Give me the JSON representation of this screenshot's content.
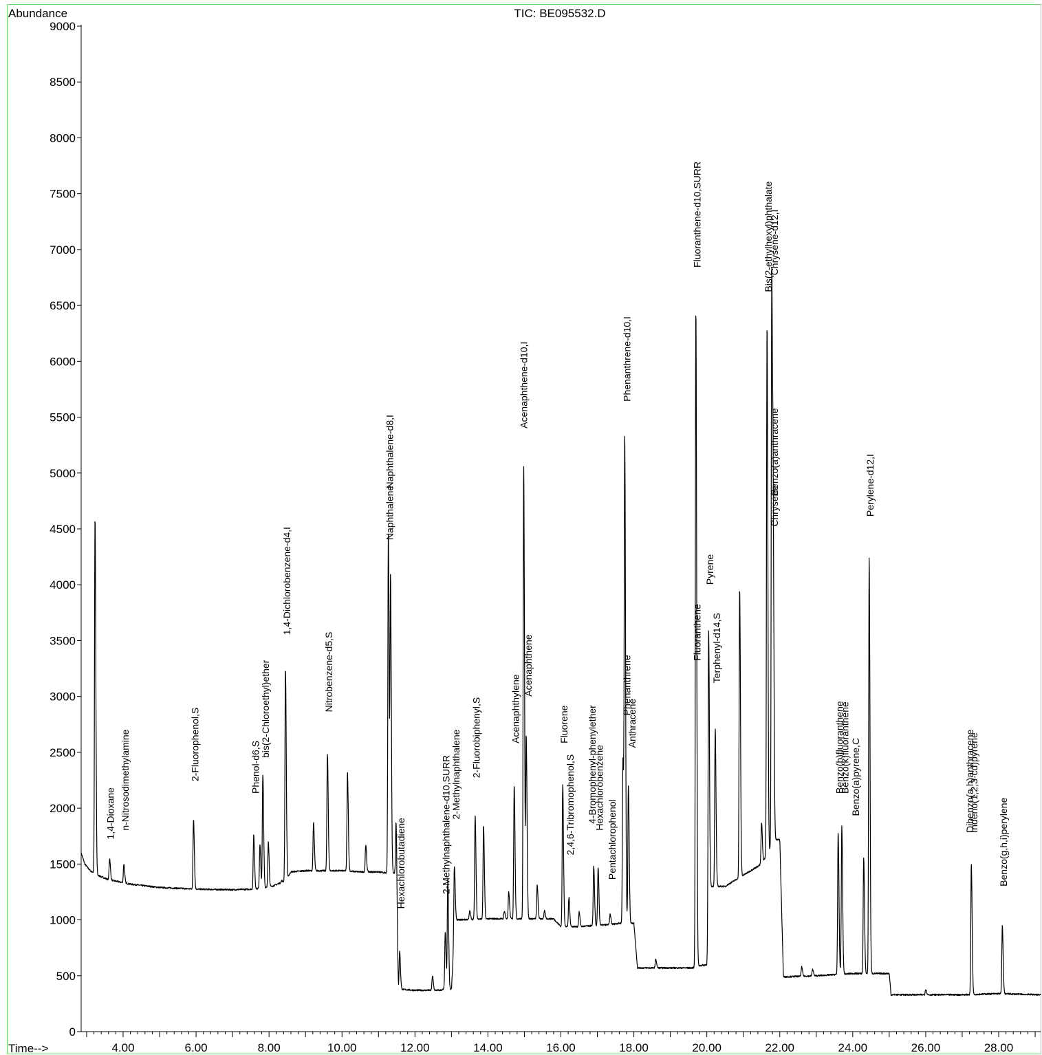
{
  "chart_data": {
    "type": "line",
    "title": "TIC: BE095532.D",
    "ylabel": "Abundance",
    "xlabel": "Time-->",
    "xlim": [
      2.85,
      29.15
    ],
    "ylim": [
      0,
      9000
    ],
    "x_ticks": [
      "4.00",
      "6.00",
      "8.00",
      "10.00",
      "12.00",
      "14.00",
      "16.00",
      "18.00",
      "20.00",
      "22.00",
      "24.00",
      "26.00",
      "28.00"
    ],
    "y_ticks": [
      "0",
      "500",
      "1000",
      "1500",
      "2000",
      "2500",
      "3000",
      "3500",
      "4000",
      "4500",
      "5000",
      "5500",
      "6000",
      "6500",
      "7000",
      "7500",
      "8000",
      "8500",
      "9000"
    ],
    "colors": {
      "frame": "#66dd66",
      "trace": "#000000"
    },
    "baseline": [
      [
        2.85,
        1600
      ],
      [
        2.95,
        1500
      ],
      [
        3.1,
        1440
      ],
      [
        3.3,
        1400
      ],
      [
        3.6,
        1360
      ],
      [
        4.2,
        1320
      ],
      [
        5.0,
        1290
      ],
      [
        6.0,
        1275
      ],
      [
        7.0,
        1270
      ],
      [
        7.5,
        1275
      ],
      [
        8.0,
        1290
      ],
      [
        8.45,
        1350
      ],
      [
        8.6,
        1430
      ],
      [
        9.0,
        1440
      ],
      [
        9.5,
        1440
      ],
      [
        10.0,
        1440
      ],
      [
        10.5,
        1430
      ],
      [
        11.0,
        1430
      ],
      [
        11.2,
        1420
      ],
      [
        11.45,
        1420
      ],
      [
        11.55,
        380
      ],
      [
        12.0,
        370
      ],
      [
        12.7,
        370
      ],
      [
        12.8,
        380
      ],
      [
        13.0,
        380
      ],
      [
        13.1,
        1000
      ],
      [
        14.0,
        1010
      ],
      [
        15.0,
        1010
      ],
      [
        15.8,
        1010
      ],
      [
        16.0,
        940
      ],
      [
        16.5,
        940
      ],
      [
        17.0,
        950
      ],
      [
        17.4,
        960
      ],
      [
        17.6,
        970
      ],
      [
        18.0,
        970
      ],
      [
        18.1,
        570
      ],
      [
        19.0,
        570
      ],
      [
        19.6,
        570
      ],
      [
        19.7,
        580
      ],
      [
        19.8,
        590
      ],
      [
        20.0,
        600
      ],
      [
        20.1,
        1300
      ],
      [
        20.5,
        1300
      ],
      [
        21.0,
        1400
      ],
      [
        21.5,
        1500
      ],
      [
        21.9,
        1720
      ],
      [
        22.0,
        1720
      ],
      [
        22.1,
        490
      ],
      [
        23.0,
        500
      ],
      [
        24.0,
        520
      ],
      [
        24.5,
        520
      ],
      [
        25.0,
        520
      ],
      [
        25.05,
        330
      ],
      [
        26.0,
        330
      ],
      [
        27.0,
        330
      ],
      [
        28.0,
        340
      ],
      [
        29.15,
        330
      ]
    ],
    "peaks": [
      [
        3.23,
        4600
      ],
      [
        3.63,
        1550
      ],
      [
        4.02,
        1500
      ],
      [
        5.93,
        1900
      ],
      [
        7.58,
        1760
      ],
      [
        7.75,
        1680
      ],
      [
        7.83,
        2300
      ],
      [
        7.98,
        1700
      ],
      [
        8.35,
        1350
      ],
      [
        8.45,
        3250
      ],
      [
        9.22,
        1870
      ],
      [
        9.6,
        2480
      ],
      [
        10.15,
        2320
      ],
      [
        10.65,
        1670
      ],
      [
        11.27,
        4470
      ],
      [
        11.33,
        4020
      ],
      [
        11.48,
        1880
      ],
      [
        11.58,
        720
      ],
      [
        12.48,
        500
      ],
      [
        12.83,
        890
      ],
      [
        12.9,
        1370
      ],
      [
        13.08,
        1480
      ],
      [
        13.5,
        1080
      ],
      [
        13.65,
        1930
      ],
      [
        13.88,
        1840
      ],
      [
        14.45,
        1080
      ],
      [
        14.57,
        1250
      ],
      [
        14.72,
        2210
      ],
      [
        14.98,
        5080
      ],
      [
        15.05,
        2630
      ],
      [
        15.35,
        1310
      ],
      [
        15.55,
        1080
      ],
      [
        16.05,
        2210
      ],
      [
        16.22,
        1200
      ],
      [
        16.5,
        1070
      ],
      [
        16.9,
        1480
      ],
      [
        17.02,
        1470
      ],
      [
        17.35,
        1050
      ],
      [
        17.7,
        2450
      ],
      [
        17.75,
        5240
      ],
      [
        17.85,
        2200
      ],
      [
        18.6,
        650
      ],
      [
        19.7,
        6470
      ],
      [
        20.05,
        3600
      ],
      [
        20.23,
        2710
      ],
      [
        20.9,
        3970
      ],
      [
        21.5,
        1870
      ],
      [
        21.65,
        6330
      ],
      [
        21.78,
        6800
      ],
      [
        21.82,
        4130
      ],
      [
        22.6,
        580
      ],
      [
        22.9,
        560
      ],
      [
        23.6,
        1790
      ],
      [
        23.7,
        1840
      ],
      [
        24.3,
        1550
      ],
      [
        24.45,
        4240
      ],
      [
        26.0,
        380
      ],
      [
        27.25,
        1500
      ],
      [
        28.1,
        950
      ]
    ],
    "annotations": [
      {
        "text": "1,4-Dioxane",
        "x": 3.75,
        "y": 1720
      },
      {
        "text": "n-Nitrosodimethylamine",
        "x": 4.15,
        "y": 1800
      },
      {
        "text": "2-Fluorophenol,S",
        "x": 6.06,
        "y": 2240
      },
      {
        "text": "Phenol-d6,S",
        "x": 7.72,
        "y": 2130
      },
      {
        "text": "bis(2-Chloroethyl)ether",
        "x": 8.0,
        "y": 2450
      },
      {
        "text": "1,4-Dichlorobenzene-d4,I",
        "x": 8.58,
        "y": 3550
      },
      {
        "text": "Nitrobenzene-d5,S",
        "x": 9.73,
        "y": 2860
      },
      {
        "text": "Naphthalene",
        "x": 11.4,
        "y": 4400
      },
      {
        "text": "Naphthalene-d8,I",
        "x": 11.4,
        "y": 4860
      },
      {
        "text": "Hexachlorobutadiene",
        "x": 11.71,
        "y": 1100
      },
      {
        "text": "2-Methylnaphthalene-d10,SURR",
        "x": 12.95,
        "y": 1230
      },
      {
        "text": "2-Methylnaphthalene",
        "x": 13.22,
        "y": 1900
      },
      {
        "text": "2-Fluorobiphenyl,S",
        "x": 13.78,
        "y": 2270
      },
      {
        "text": "Acenaphthylene",
        "x": 14.85,
        "y": 2580
      },
      {
        "text": "Acenaphthene",
        "x": 15.2,
        "y": 3000
      },
      {
        "text": "Acenaphthene-d10,I",
        "x": 15.08,
        "y": 5400
      },
      {
        "text": "Fluorene",
        "x": 16.18,
        "y": 2580
      },
      {
        "text": "2,4,6-Tribromophenol,S",
        "x": 16.35,
        "y": 1580
      },
      {
        "text": "4-Bromophenyl-phenylether",
        "x": 16.95,
        "y": 1860
      },
      {
        "text": "Hexachlorobenzene",
        "x": 17.15,
        "y": 1800
      },
      {
        "text": "Pentachlorophenol",
        "x": 17.5,
        "y": 1360
      },
      {
        "text": "Phenanthrene",
        "x": 17.9,
        "y": 2830
      },
      {
        "text": "Anthracene",
        "x": 18.05,
        "y": 2540
      },
      {
        "text": "Phenanthrene-d10,I",
        "x": 17.9,
        "y": 5640
      },
      {
        "text": "Fluoranthene",
        "x": 19.83,
        "y": 3320
      },
      {
        "text": "Fluoranthene-d10,SURR",
        "x": 19.83,
        "y": 6840
      },
      {
        "text": "Pyrene",
        "x": 20.18,
        "y": 4000
      },
      {
        "text": "Terphenyl-d14,S",
        "x": 20.36,
        "y": 3120
      },
      {
        "text": "Bis(2-ethylhexyl)phthalate",
        "x": 21.78,
        "y": 6620
      },
      {
        "text": "Chrysene-d12,I",
        "x": 21.95,
        "y": 6770
      },
      {
        "text": "Benzo(a)anthracene",
        "x": 21.95,
        "y": 4800
      },
      {
        "text": "Chrysene",
        "x": 21.95,
        "y": 4520
      },
      {
        "text": "Benzo(b)fluoranthene",
        "x": 23.73,
        "y": 2130
      },
      {
        "text": "Benzo(k)fluoranthene",
        "x": 23.88,
        "y": 2130
      },
      {
        "text": "Benzo(a)pyrene,C",
        "x": 24.17,
        "y": 1930
      },
      {
        "text": "Perylene-d12,I",
        "x": 24.57,
        "y": 4610
      },
      {
        "text": "Dibenzo(a,h)anthracene",
        "x": 27.3,
        "y": 1780
      },
      {
        "text": "Indeno(1,2,3-cd)pyrene",
        "x": 27.42,
        "y": 1780
      },
      {
        "text": "Benzo(g,h,i)perylene",
        "x": 28.23,
        "y": 1300
      }
    ]
  }
}
